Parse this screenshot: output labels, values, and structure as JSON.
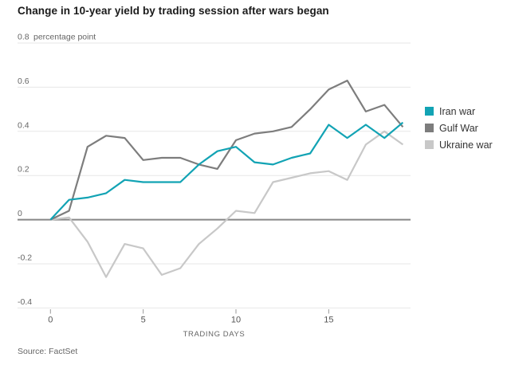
{
  "title": "Change in 10-year yield by trading session after wars began",
  "source": "Source: FactSet",
  "chart_data": {
    "type": "line",
    "x": [
      0,
      1,
      2,
      3,
      4,
      5,
      6,
      7,
      8,
      9,
      10,
      11,
      12,
      13,
      14,
      15,
      16,
      17,
      18,
      19
    ],
    "xlabel": "TRADING DAYS",
    "x_ticks": [
      0,
      5,
      10,
      15
    ],
    "y_ticks": [
      0.8,
      0.6,
      0.4,
      0.2,
      0,
      -0.2,
      -0.4
    ],
    "y_tick_labels": [
      "0.8",
      "0.6",
      "0.4",
      "0.2",
      "0",
      "-0.2",
      "-0.4"
    ],
    "y_axis_unit": "percentage point",
    "ylim": [
      -0.4,
      0.8
    ],
    "xlim": [
      0,
      19
    ],
    "grid": "horizontal",
    "legend_position": "right",
    "series": [
      {
        "name": "Iran war",
        "color": "#12a3b4",
        "values": [
          0.0,
          0.09,
          0.1,
          0.12,
          0.18,
          0.17,
          0.17,
          0.17,
          0.25,
          0.31,
          0.33,
          0.26,
          0.25,
          0.28,
          0.3,
          0.43,
          0.37,
          0.43,
          0.37,
          0.44
        ]
      },
      {
        "name": "Gulf War",
        "color": "#7d7d7d",
        "values": [
          0.0,
          0.04,
          0.33,
          0.38,
          0.37,
          0.27,
          0.28,
          0.28,
          0.25,
          0.23,
          0.36,
          0.39,
          0.4,
          0.42,
          0.5,
          0.59,
          0.63,
          0.49,
          0.52,
          0.42
        ]
      },
      {
        "name": "Ukraine war",
        "color": "#c8c8c8",
        "values": [
          0.0,
          0.01,
          -0.1,
          -0.26,
          -0.11,
          -0.13,
          -0.25,
          -0.22,
          -0.11,
          -0.04,
          0.04,
          0.03,
          0.17,
          0.19,
          0.21,
          0.22,
          0.18,
          0.34,
          0.4,
          0.34
        ]
      }
    ],
    "colors": {
      "zero_line": "#878787",
      "gridline": "#e7e7e7",
      "tick_label": "#666666",
      "x_tick_label": "#555555",
      "tick_mark": "#999999"
    }
  }
}
